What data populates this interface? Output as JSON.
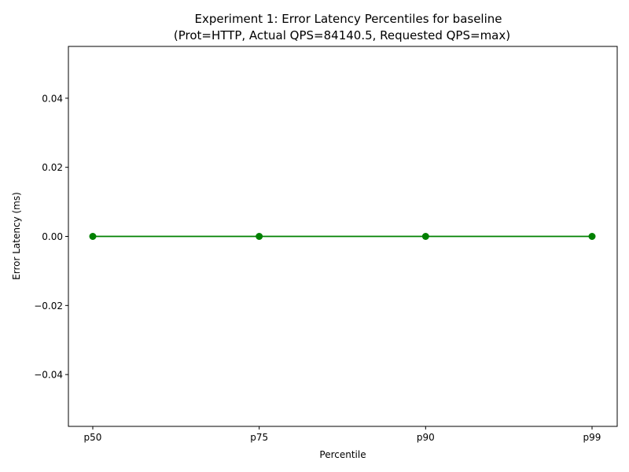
{
  "chart_data": {
    "type": "line",
    "title_line1": "Experiment 1: Error Latency Percentiles for baseline",
    "title_line2": "(Prot=HTTP, Actual QPS=84140.5, Requested QPS=max)",
    "xlabel": "Percentile",
    "ylabel": "Error Latency (ms)",
    "categories": [
      "p50",
      "p75",
      "p90",
      "p99"
    ],
    "series": [
      {
        "values": [
          0.0,
          0.0,
          0.0,
          0.0
        ],
        "color": "#008000",
        "marker": "circle"
      }
    ],
    "ylim": [
      -0.055,
      0.055
    ],
    "yticks": [
      -0.04,
      -0.02,
      0.0,
      0.02,
      0.04
    ],
    "ytick_labels": [
      "−0.04",
      "−0.02",
      "0.00",
      "0.02",
      "0.04"
    ],
    "grid": false,
    "legend": "none"
  }
}
